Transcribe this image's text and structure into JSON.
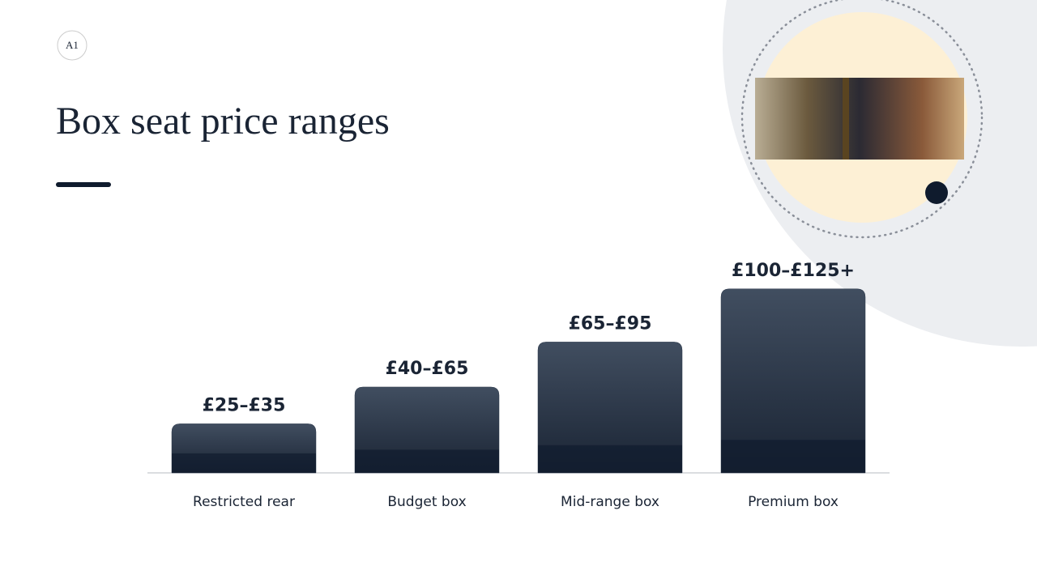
{
  "logo": "A1",
  "chart_data": {
    "type": "bar",
    "title": "Box seat price ranges",
    "categories": [
      "Restricted rear",
      "Budget box",
      "Mid-range box",
      "Premium box"
    ],
    "values": [
      30,
      52.5,
      80,
      112.5
    ],
    "value_labels": [
      "£25–£35",
      "£40–£65",
      "£65–£95",
      "£100–£125+"
    ],
    "color": "#2e3a4c"
  }
}
